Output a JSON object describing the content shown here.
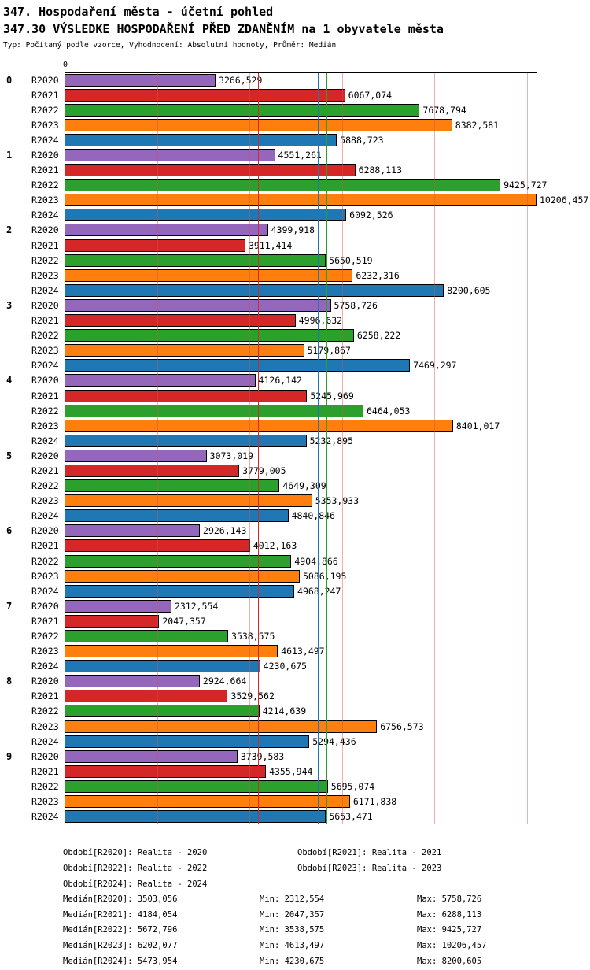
{
  "header": {
    "title": "347. Hospodaření města - účetní pohled",
    "subtitle": "347.30 VÝSLEDKE HOSPODAŘENÍ PŘED ZDANĚNÍM na 1 obyvatele města",
    "type_line": "Typ: Počítaný podle vzorce, Vyhodnocení: Absolutní hodnoty, Průměr: Medián"
  },
  "chart_data": {
    "type": "bar",
    "orientation": "horizontal",
    "title": "347.30 VÝSLEDKE HOSPODAŘENÍ PŘED ZDANĚNÍM na 1 obyvatele města",
    "axis_zero_label": "0",
    "xlim": [
      0,
      10206.457
    ],
    "grid_step": 2000,
    "grid_on": true,
    "value_decimals": 3,
    "decimal_separator": ",",
    "categories": [
      "0",
      "1",
      "2",
      "3",
      "4",
      "5",
      "6",
      "7",
      "8",
      "9"
    ],
    "series": [
      {
        "name": "R2020",
        "color": "#9467bd",
        "values": [
          3266.529,
          4551.261,
          4399.918,
          5758.726,
          4126.142,
          3073.019,
          2926.143,
          2312.554,
          2924.664,
          3739.583
        ]
      },
      {
        "name": "R2021",
        "color": "#d62728",
        "values": [
          6067.074,
          6288.113,
          3911.414,
          4996.632,
          5245.969,
          3779.005,
          4012.163,
          2047.357,
          3529.562,
          4355.944
        ]
      },
      {
        "name": "R2022",
        "color": "#2ca02c",
        "values": [
          7678.794,
          9425.727,
          5650.519,
          6258.222,
          6464.053,
          4649.309,
          4904.866,
          3538.575,
          4214.639,
          5695.074
        ]
      },
      {
        "name": "R2023",
        "color": "#ff7f0e",
        "values": [
          8382.581,
          10206.457,
          6232.316,
          5179.867,
          8401.017,
          5353.933,
          5086.195,
          4613.497,
          6756.573,
          6171.838
        ]
      },
      {
        "name": "R2024",
        "color": "#1f77b4",
        "values": [
          5888.723,
          6092.526,
          8200.605,
          7469.297,
          5232.895,
          4840.846,
          4968.247,
          4230.675,
          5294.436,
          5653.471
        ]
      }
    ],
    "median_lines": [
      {
        "name": "R2020",
        "value": 3503.056,
        "color": "#9467bd"
      },
      {
        "name": "R2021",
        "value": 4184.054,
        "color": "#d62728"
      },
      {
        "name": "R2022",
        "value": 5672.796,
        "color": "#2ca02c"
      },
      {
        "name": "R2023",
        "value": 6202.077,
        "color": "#ff7f0e"
      },
      {
        "name": "R2024",
        "value": 5473.954,
        "color": "#1f77b4"
      }
    ]
  },
  "footer": {
    "period_rows": [
      [
        "Období[R2020]: Realita - 2020",
        "Období[R2021]: Realita - 2021"
      ],
      [
        "Období[R2022]: Realita - 2022",
        "Období[R2023]: Realita - 2023"
      ],
      [
        "Období[R2024]: Realita - 2024",
        ""
      ]
    ],
    "median_rows": [
      [
        "Medián[R2020]: 3503,056",
        "Min: 2312,554",
        "Max: 5758,726"
      ],
      [
        "Medián[R2021]: 4184,054",
        "Min: 2047,357",
        "Max: 6288,113"
      ],
      [
        "Medián[R2022]: 5672,796",
        "Min: 3538,575",
        "Max: 9425,727"
      ],
      [
        "Medián[R2023]: 6202,077",
        "Min: 4613,497",
        "Max: 10206,457"
      ],
      [
        "Medián[R2024]: 5473,954",
        "Min: 4230,675",
        "Max: 8200,605"
      ]
    ]
  }
}
